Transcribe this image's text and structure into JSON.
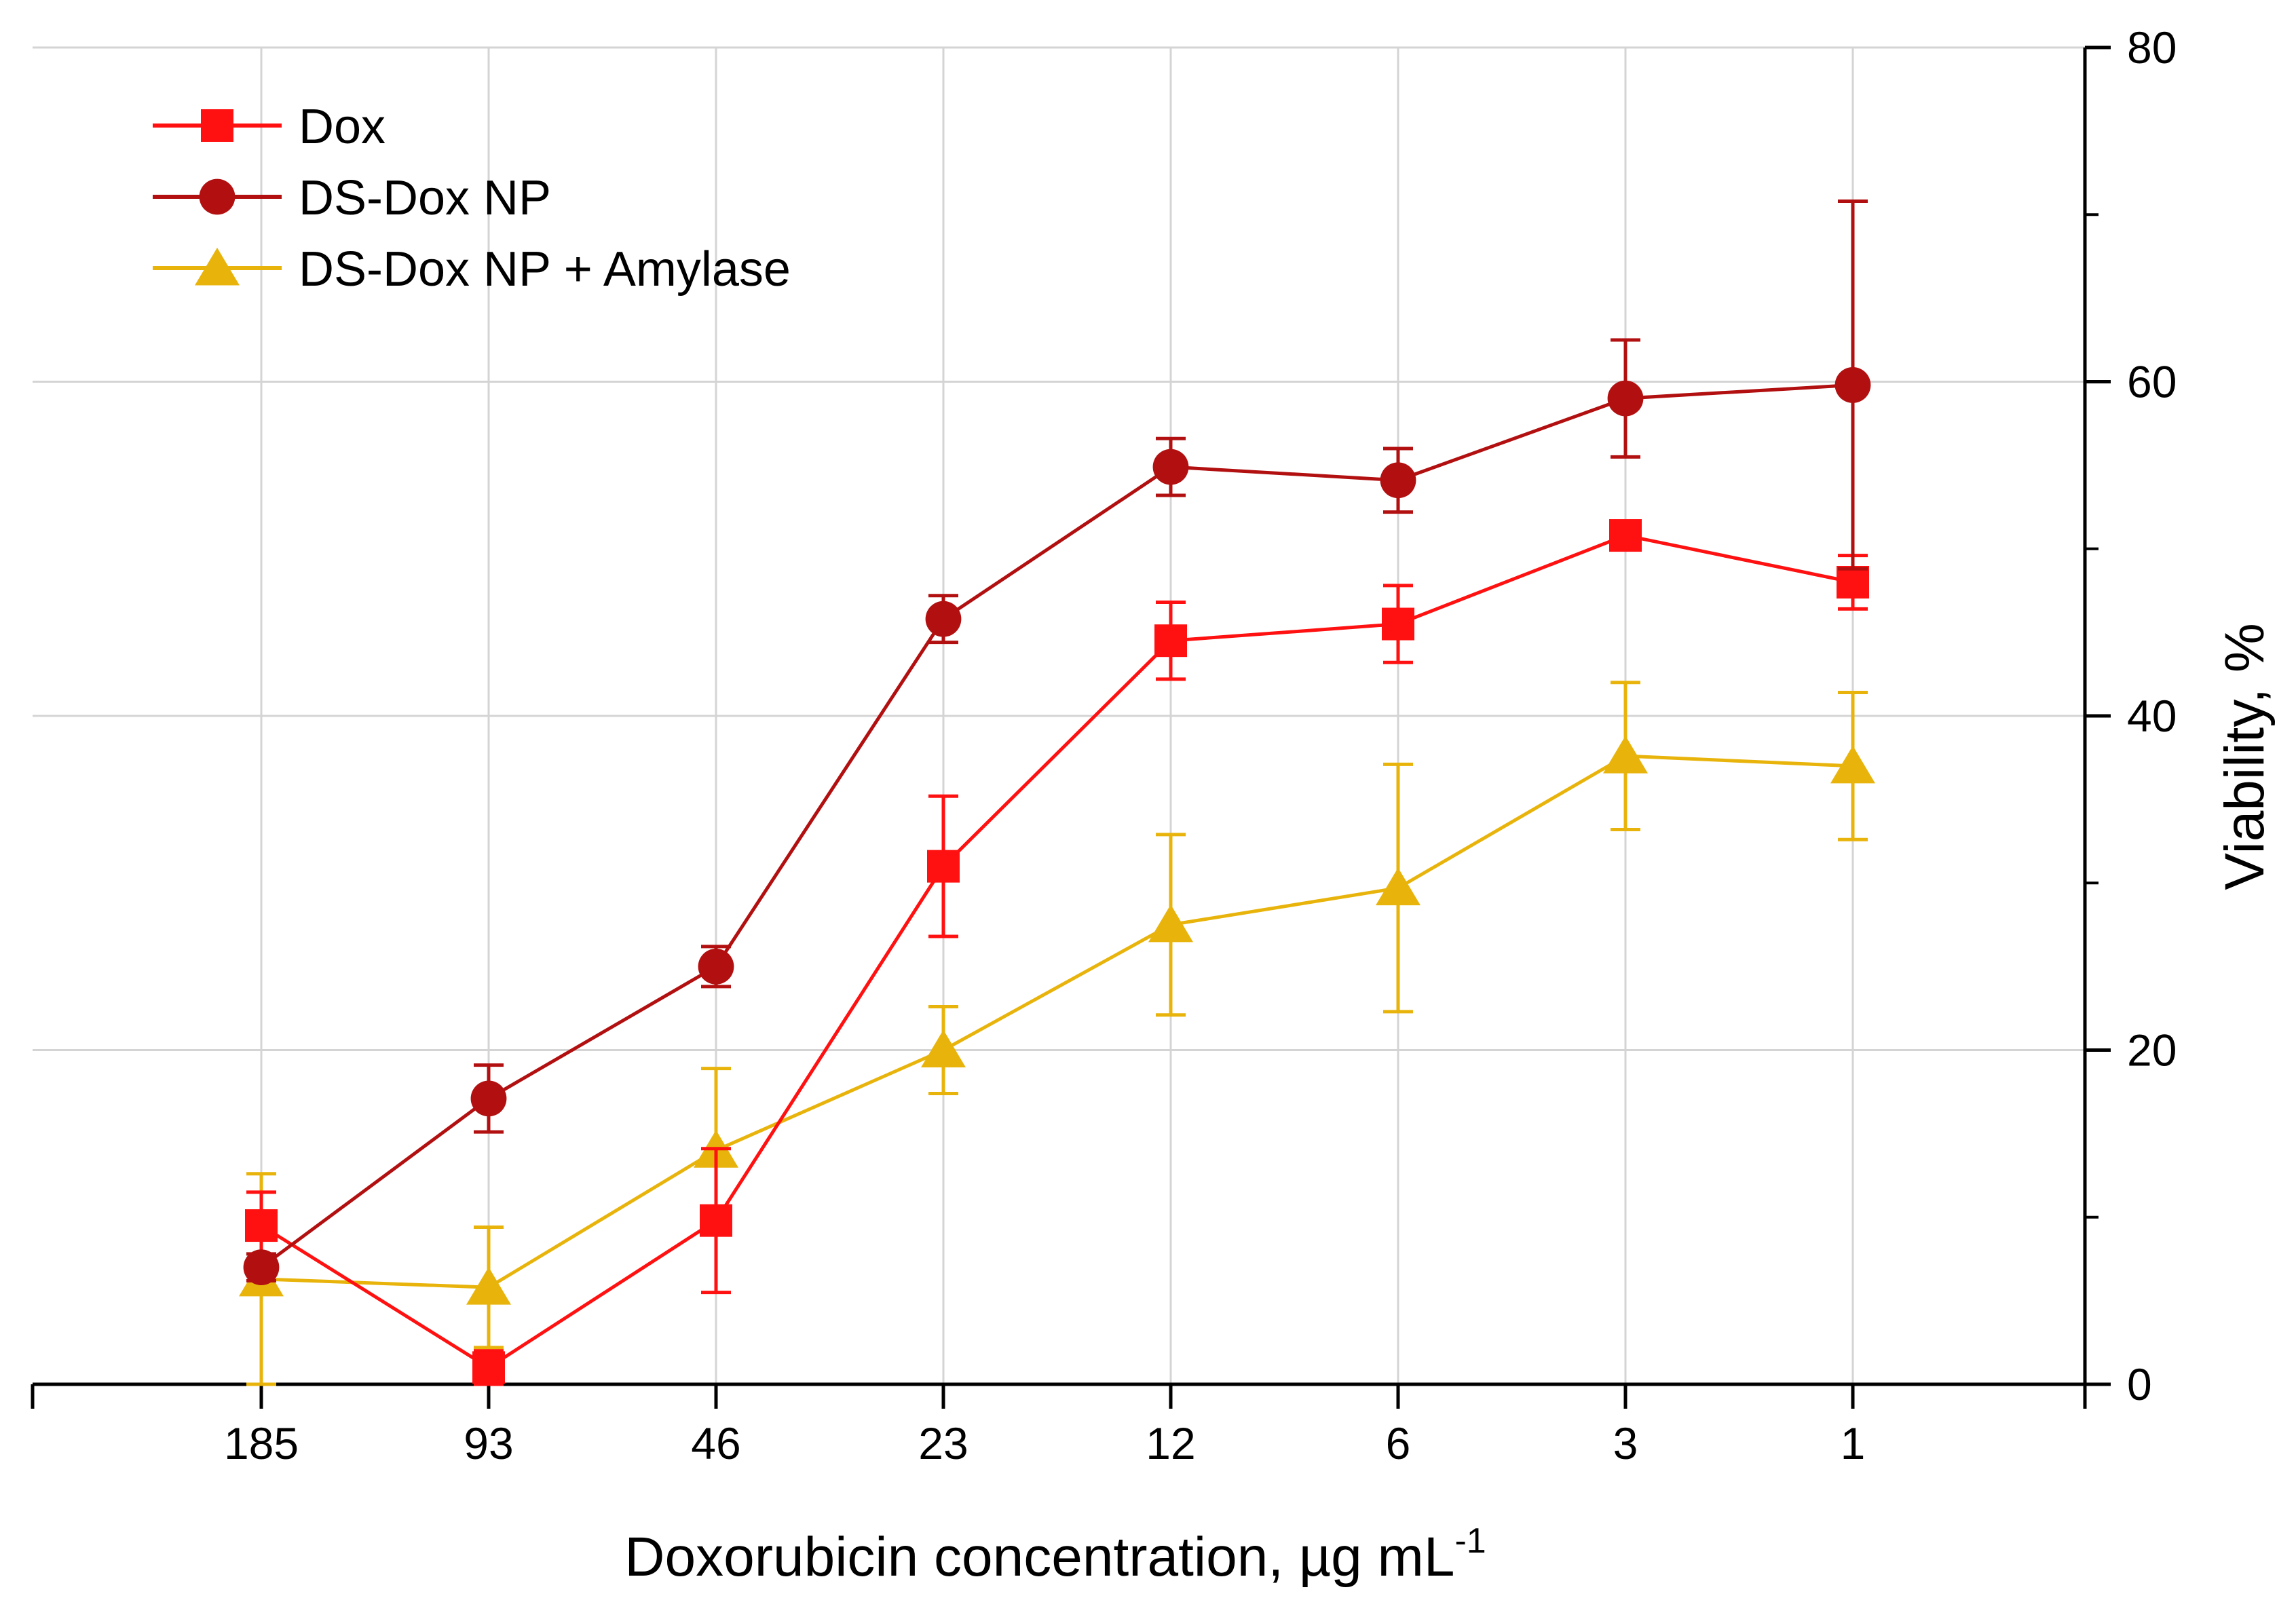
{
  "chart_data": {
    "type": "line",
    "title": "",
    "xlabel": "Doxorubicin concentration, µg mL",
    "xlabel_superscript": "-1",
    "ylabel": "Viability, %",
    "y_axis_side": "right",
    "ylim": [
      0,
      80
    ],
    "y_ticks": [
      0,
      20,
      40,
      60,
      80
    ],
    "y_tick_labels": [
      "0",
      "20",
      "40",
      "60",
      "80"
    ],
    "categories": [
      "185",
      "93",
      "46",
      "23",
      "12",
      "6",
      "3",
      "1"
    ],
    "grid": true,
    "legend_position": "top-left",
    "series": [
      {
        "name": "Dox",
        "color": "#ff1111",
        "marker": "square",
        "values": [
          9.5,
          1.0,
          9.8,
          31.0,
          44.5,
          45.5,
          50.8,
          48.0
        ],
        "errors": [
          2.0,
          1.0,
          4.3,
          4.2,
          2.3,
          2.3,
          0.0,
          1.6
        ]
      },
      {
        "name": "DS-Dox NP",
        "color": "#b21010",
        "marker": "circle",
        "values": [
          7.0,
          17.1,
          25.0,
          45.8,
          54.9,
          54.1,
          59.0,
          59.8
        ],
        "errors": [
          0.8,
          2.0,
          1.2,
          1.4,
          1.7,
          1.9,
          3.5,
          11.0
        ]
      },
      {
        "name": "DS-Dox NP + Amylase",
        "color": "#e8b40c",
        "marker": "triangle",
        "values": [
          6.3,
          5.8,
          14.0,
          20.0,
          27.5,
          29.7,
          37.6,
          37.0
        ],
        "errors": [
          6.3,
          3.6,
          4.9,
          2.6,
          5.4,
          7.4,
          4.4,
          4.4
        ]
      }
    ]
  }
}
